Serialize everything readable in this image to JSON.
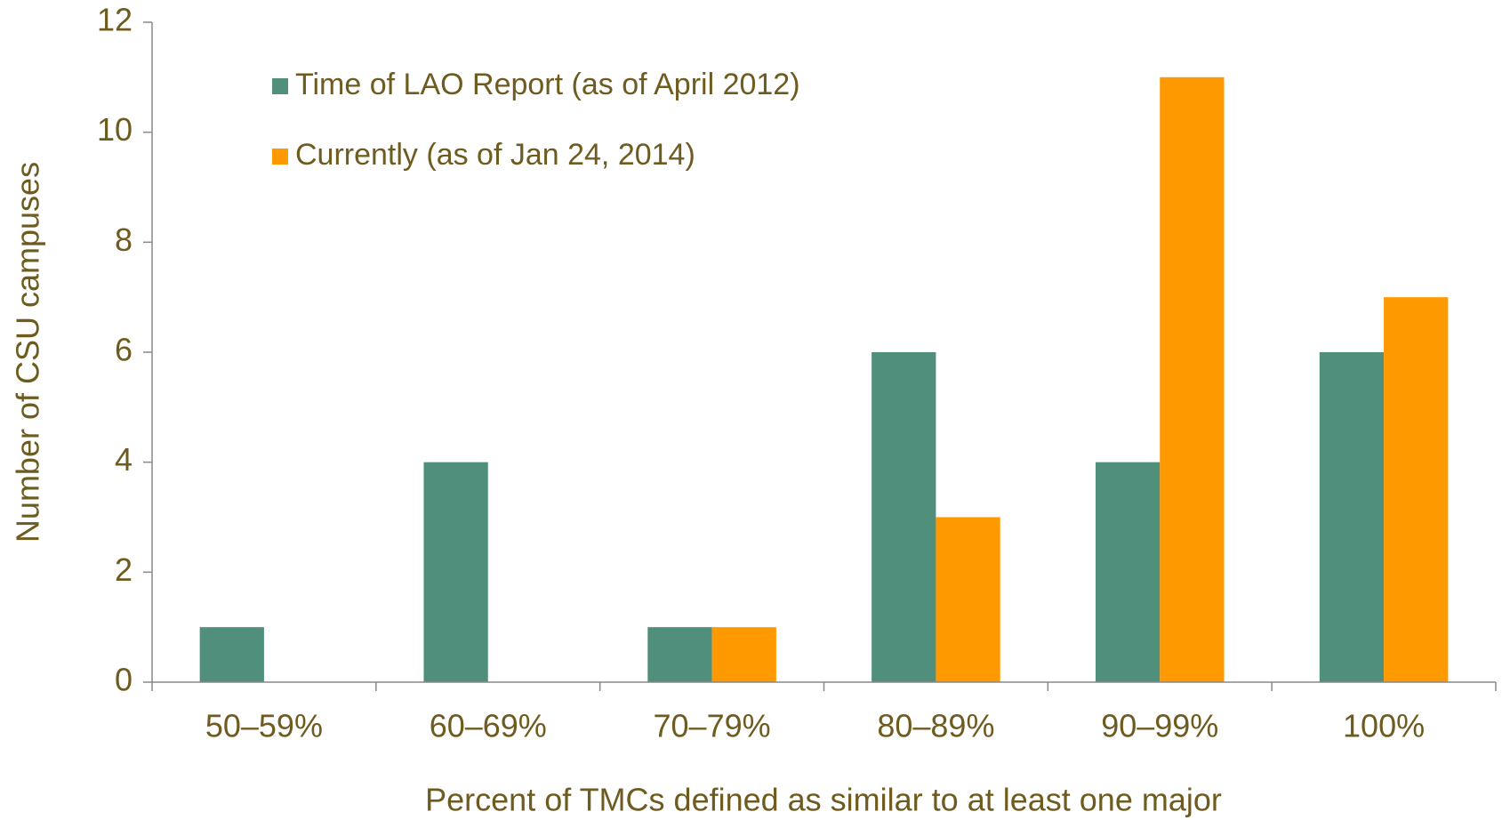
{
  "chart_data": {
    "type": "bar",
    "x_label": "Percent of TMCs defined as similar to at least one major",
    "y_label": "Number of CSU campuses",
    "categories": [
      "50–59%",
      "60–69%",
      "70–79%",
      "80–89%",
      "90–99%",
      "100%"
    ],
    "series": [
      {
        "name": "Time of LAO Report (as of April 2012)",
        "color": "#4f8f7c",
        "values": [
          1,
          4,
          1,
          6,
          4,
          6
        ]
      },
      {
        "name": "Currently (as of Jan 24, 2014)",
        "color": "#ff9900",
        "values": [
          0,
          0,
          1,
          3,
          11,
          7
        ]
      }
    ],
    "ylim": [
      0,
      12
    ],
    "yticks": [
      0,
      2,
      4,
      6,
      8,
      10,
      12
    ],
    "grid": false,
    "legend": "upper left"
  }
}
